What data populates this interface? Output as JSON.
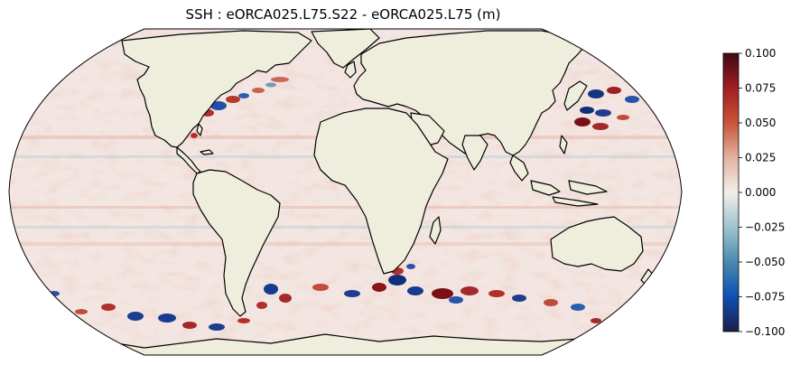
{
  "title": "SSH : eORCA025.L75.S22 - eORCA025.L75 (m)",
  "colorbar": {
    "ticks": [
      "0.100",
      "0.075",
      "0.050",
      "0.025",
      "0.000",
      "−0.025",
      "−0.050",
      "−0.075",
      "−0.100"
    ],
    "min": -0.1,
    "max": 0.1,
    "colors": [
      "#1a1f4a",
      "#0e4fb5",
      "#4a8ab0",
      "#9ec3cf",
      "#f1efeb",
      "#e3b2a0",
      "#c8553a",
      "#a11e22",
      "#3f0a11"
    ]
  },
  "map": {
    "projection": "robinson",
    "land_color": "#efeedc",
    "ocean_base": "#f3e6e2",
    "coast_color": "#000000"
  }
}
